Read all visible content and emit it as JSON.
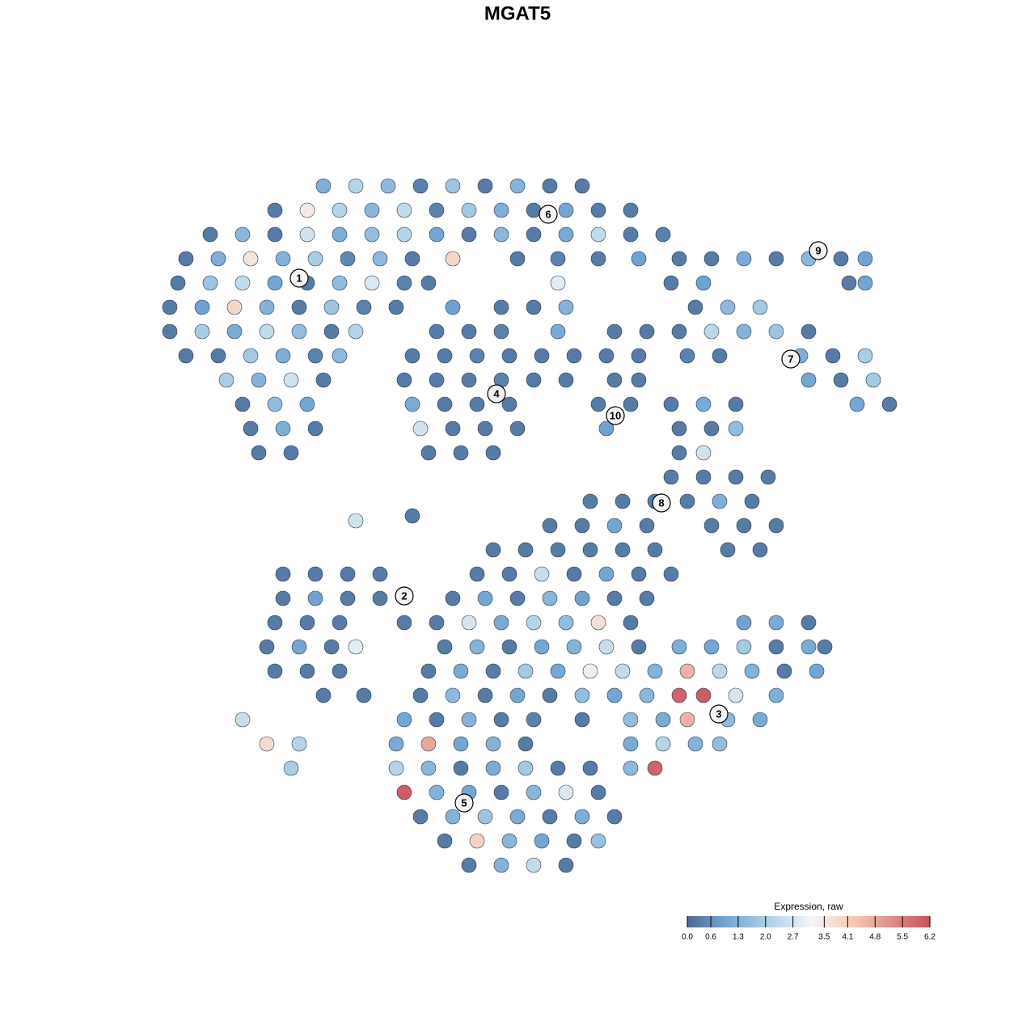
{
  "chart_data": {
    "type": "scatter",
    "title": "MGAT5",
    "xlim": [
      0,
      128
    ],
    "ylim": [
      128,
      0
    ],
    "series": [
      {
        "x": [
          40,
          44,
          48,
          52,
          56,
          60,
          64,
          68,
          72,
          34,
          38,
          42,
          46,
          50,
          54,
          58,
          62,
          66,
          70,
          74,
          78,
          26,
          30,
          34,
          38,
          42,
          46,
          50,
          54,
          58,
          62,
          66,
          70,
          74,
          78,
          82,
          23,
          27,
          31,
          35,
          39,
          43,
          47,
          51,
          56,
          64,
          69,
          74,
          79,
          84,
          88,
          92,
          96,
          100,
          104,
          107,
          22,
          26,
          30,
          34,
          38,
          42,
          46,
          50,
          53,
          69,
          83,
          87,
          105,
          107,
          21,
          25,
          29,
          33,
          37,
          41,
          45,
          49,
          56,
          62,
          66,
          70,
          86,
          90,
          94,
          21,
          25,
          29,
          33,
          37,
          41,
          44,
          54,
          58,
          62,
          69,
          76,
          80,
          84,
          88,
          92,
          96,
          100,
          23,
          27,
          31,
          35,
          39,
          42,
          51,
          55,
          59,
          63,
          67,
          71,
          75,
          79,
          85,
          89,
          99,
          103,
          107,
          28,
          32,
          36,
          40,
          50,
          54,
          58,
          62,
          66,
          70,
          76,
          79,
          100,
          104,
          108,
          30,
          34,
          38,
          51,
          55,
          59,
          63,
          74,
          78,
          83,
          87,
          91,
          106,
          110,
          31,
          35,
          39,
          52,
          56,
          60,
          64,
          75,
          84,
          88,
          91,
          32,
          36,
          53,
          57,
          61,
          84,
          87,
          83,
          87,
          91,
          95,
          73,
          77,
          81,
          85,
          89,
          93,
          68,
          72,
          76,
          80,
          88,
          92,
          96,
          61,
          65,
          69,
          73,
          77,
          81,
          90,
          94,
          35,
          39,
          43,
          47,
          59,
          63,
          67,
          71,
          75,
          79,
          83,
          35,
          39,
          43,
          47,
          56,
          60,
          64,
          68,
          72,
          76,
          80,
          34,
          38,
          42,
          50,
          54,
          58,
          62,
          66,
          70,
          74,
          78,
          92,
          96,
          100,
          33,
          37,
          41,
          44,
          55,
          59,
          63,
          67,
          71,
          75,
          79,
          84,
          88,
          92,
          96,
          100,
          102,
          34,
          38,
          42,
          53,
          57,
          61,
          65,
          69,
          73,
          77,
          81,
          85,
          89,
          93,
          97,
          101,
          40,
          45,
          52,
          56,
          60,
          64,
          68,
          72,
          76,
          80,
          84,
          87,
          91,
          96,
          30,
          50,
          54,
          58,
          62,
          66,
          72,
          78,
          82,
          85,
          90,
          94,
          33,
          37,
          49,
          53,
          57,
          61,
          65,
          78,
          82,
          86,
          89,
          36,
          49,
          53,
          57,
          61,
          65,
          69,
          73,
          78,
          81,
          50,
          54,
          58,
          62,
          66,
          70,
          74,
          52,
          56,
          60,
          64,
          68,
          72,
          76,
          55,
          59,
          63,
          67,
          71,
          74,
          58,
          62,
          66,
          70,
          44,
          51
        ],
        "y": [
          23,
          23,
          23,
          23,
          23,
          23,
          23,
          23,
          23,
          26,
          26,
          26,
          26,
          26,
          26,
          26,
          26,
          26,
          26,
          26,
          26,
          29,
          29,
          29,
          29,
          29,
          29,
          29,
          29,
          29,
          29,
          29,
          29,
          29,
          29,
          29,
          32,
          32,
          32,
          32,
          32,
          32,
          32,
          32,
          32,
          32,
          32,
          32,
          32,
          32,
          32,
          32,
          32,
          32,
          32,
          32,
          35,
          35,
          35,
          35,
          35,
          35,
          35,
          35,
          35,
          35,
          35,
          35,
          35,
          35,
          38,
          38,
          38,
          38,
          38,
          38,
          38,
          38,
          38,
          38,
          38,
          38,
          38,
          38,
          38,
          41,
          41,
          41,
          41,
          41,
          41,
          41,
          41,
          41,
          41,
          41,
          41,
          41,
          41,
          41,
          41,
          41,
          41,
          44,
          44,
          44,
          44,
          44,
          44,
          44,
          44,
          44,
          44,
          44,
          44,
          44,
          44,
          44,
          44,
          44,
          44,
          44,
          47,
          47,
          47,
          47,
          47,
          47,
          47,
          47,
          47,
          47,
          47,
          47,
          47,
          47,
          47,
          50,
          50,
          50,
          50,
          50,
          50,
          50,
          50,
          50,
          50,
          50,
          50,
          50,
          50,
          53,
          53,
          53,
          53,
          53,
          53,
          53,
          53,
          53,
          53,
          53,
          56,
          56,
          56,
          56,
          56,
          56,
          56,
          59,
          59,
          59,
          59,
          62,
          62,
          62,
          62,
          62,
          62,
          65,
          65,
          65,
          65,
          65,
          65,
          65,
          68,
          68,
          68,
          68,
          68,
          68,
          68,
          68,
          71,
          71,
          71,
          71,
          71,
          71,
          71,
          71,
          71,
          71,
          71,
          74,
          74,
          74,
          74,
          74,
          74,
          74,
          74,
          74,
          74,
          74,
          77,
          77,
          77,
          77,
          77,
          77,
          77,
          77,
          77,
          77,
          77,
          77,
          77,
          77,
          80,
          80,
          80,
          80,
          80,
          80,
          80,
          80,
          80,
          80,
          80,
          80,
          80,
          80,
          80,
          80,
          80,
          83,
          83,
          83,
          83,
          83,
          83,
          83,
          83,
          83,
          83,
          83,
          83,
          83,
          83,
          83,
          83,
          86,
          86,
          86,
          86,
          86,
          86,
          86,
          86,
          86,
          86,
          86,
          86,
          86,
          86,
          89,
          89,
          89,
          89,
          89,
          89,
          89,
          89,
          89,
          89,
          89,
          89,
          92,
          92,
          92,
          92,
          92,
          92,
          92,
          92,
          92,
          92,
          92,
          95,
          95,
          95,
          95,
          95,
          95,
          95,
          95,
          95,
          95,
          98,
          98,
          98,
          98,
          98,
          98,
          98,
          101,
          101,
          101,
          101,
          101,
          101,
          101,
          104,
          104,
          104,
          104,
          104,
          104,
          107,
          107,
          107,
          107,
          64.4,
          63.8
        ],
        "values": [
          1.2,
          2.2,
          1.5,
          0.4,
          1.8,
          0.3,
          1.3,
          0.3,
          0.3,
          0.3,
          3.5,
          2.2,
          1.4,
          2.4,
          0.4,
          1.9,
          1.2,
          0.3,
          1.0,
          0.3,
          0.3,
          0.3,
          1.4,
          0.3,
          2.6,
          1.2,
          1.6,
          2.2,
          1.0,
          0.3,
          1.4,
          0.3,
          1.1,
          2.4,
          0.3,
          0.4,
          0.3,
          1.2,
          3.6,
          1.3,
          2.0,
          0.5,
          1.5,
          0.3,
          3.9,
          0.3,
          0.4,
          0.3,
          0.9,
          0.3,
          0.3,
          1.1,
          0.3,
          1.4,
          0.3,
          0.9,
          0.3,
          1.8,
          2.4,
          1.0,
          0.3,
          1.6,
          2.8,
          0.4,
          0.3,
          2.9,
          0.3,
          0.9,
          0.3,
          1.0,
          0.3,
          0.9,
          3.9,
          1.3,
          0.3,
          1.8,
          0.4,
          0.3,
          0.9,
          0.3,
          0.3,
          1.3,
          0.3,
          1.5,
          1.9,
          0.3,
          2.0,
          1.1,
          2.4,
          1.6,
          0.3,
          2.2,
          0.3,
          0.3,
          0.4,
          1.1,
          0.3,
          0.3,
          0.3,
          2.3,
          1.3,
          1.8,
          0.3,
          0.3,
          0.3,
          1.9,
          1.2,
          0.4,
          1.5,
          0.3,
          0.3,
          0.4,
          0.3,
          0.3,
          0.3,
          0.3,
          0.3,
          0.4,
          0.3,
          1.2,
          0.3,
          2.0,
          2.0,
          1.3,
          2.6,
          0.3,
          0.3,
          0.3,
          0.3,
          0.4,
          0.3,
          0.3,
          0.3,
          0.3,
          1.0,
          0.3,
          1.9,
          0.3,
          1.6,
          1.0,
          1.1,
          0.3,
          0.3,
          0.3,
          0.3,
          0.3,
          0.3,
          1.1,
          0.3,
          1.0,
          0.3,
          0.3,
          1.2,
          0.3,
          2.6,
          0.3,
          0.3,
          0.3,
          0.9,
          0.3,
          0.3,
          1.6,
          0.3,
          0.3,
          0.3,
          0.3,
          0.3,
          0.3,
          2.6,
          0.3,
          0.3,
          0.3,
          0.3,
          0.3,
          0.3,
          0.3,
          0.3,
          1.2,
          0.3,
          0.3,
          0.3,
          1.0,
          0.3,
          0.3,
          0.3,
          0.3,
          0.3,
          0.3,
          0.3,
          0.3,
          0.3,
          0.3,
          0.3,
          0.3,
          0.3,
          0.3,
          0.3,
          0.3,
          0.3,
          0.3,
          2.5,
          0.3,
          1.0,
          0.3,
          0.3,
          0.3,
          0.9,
          0.3,
          0.3,
          0.3,
          1.0,
          0.3,
          1.4,
          0.9,
          0.3,
          0.3,
          0.3,
          0.3,
          0.3,
          0.3,
          0.3,
          2.7,
          1.1,
          2.2,
          1.6,
          3.7,
          0.3,
          0.9,
          1.1,
          0.3,
          0.3,
          1.0,
          0.3,
          2.9,
          0.3,
          1.3,
          0.3,
          1.0,
          1.3,
          2.5,
          0.3,
          1.2,
          1.0,
          1.9,
          0.3,
          1.1,
          0.3,
          0.3,
          0.3,
          0.3,
          0.3,
          1.1,
          0.3,
          1.9,
          1.0,
          3.4,
          2.4,
          1.3,
          4.6,
          2.3,
          1.3,
          0.3,
          1.0,
          0.3,
          0.3,
          0.3,
          1.5,
          0.3,
          1.0,
          0.3,
          1.6,
          1.0,
          1.4,
          5.9,
          6.0,
          2.7,
          1.2,
          2.5,
          1.0,
          0.3,
          1.3,
          0.3,
          0.4,
          0.3,
          1.6,
          1.1,
          4.6,
          1.5,
          1.1,
          3.8,
          2.2,
          1.1,
          4.8,
          1.0,
          1.3,
          0.3,
          1.1,
          2.2,
          1.3,
          1.6,
          2.0,
          2.2,
          1.4,
          0.3,
          1.1,
          1.9,
          0.3,
          0.3,
          1.5,
          5.9,
          6.0,
          1.3,
          1.0,
          0.3,
          1.4,
          2.8,
          0.3,
          0.3,
          1.3,
          1.8,
          1.1,
          0.3,
          1.2,
          0.3,
          0.3,
          4.0,
          1.4,
          1.0,
          0.3,
          1.7,
          0.3,
          1.3,
          2.4,
          0.3,
          2.6,
          0.3
        ]
      }
    ],
    "clusters": [
      {
        "label": "1",
        "x": 37,
        "y": 34.4
      },
      {
        "label": "2",
        "x": 50,
        "y": 73.7
      },
      {
        "label": "3",
        "x": 88.9,
        "y": 88.3
      },
      {
        "label": "4",
        "x": 61.4,
        "y": 48.7
      },
      {
        "label": "5",
        "x": 57.4,
        "y": 99.3
      },
      {
        "label": "6",
        "x": 67.8,
        "y": 26.5
      },
      {
        "label": "7",
        "x": 97.8,
        "y": 44.4
      },
      {
        "label": "8",
        "x": 81.8,
        "y": 62.2
      },
      {
        "label": "9",
        "x": 101.2,
        "y": 31
      },
      {
        "label": "10",
        "x": 76.1,
        "y": 51.4
      }
    ],
    "colorbar": {
      "title": "Expression, raw",
      "lim": [
        0,
        6.2
      ],
      "ticks": [
        {
          "value": 0,
          "label": "0.0"
        },
        0.6,
        1.3,
        {
          "value": 2,
          "label": "2.0"
        },
        2.7,
        3.5,
        4.1,
        4.8,
        5.5,
        6.2
      ],
      "colorscale": [
        {
          "value": 0,
          "color": "#4a6890"
        },
        {
          "value": 0.9,
          "color": "#6fa2d3"
        },
        {
          "value": 2.0,
          "color": "#a9cde3"
        },
        {
          "value": 3.2,
          "color": "#f4f6f8"
        },
        {
          "value": 4.3,
          "color": "#f5c6b0"
        },
        {
          "value": 6.2,
          "color": "#c8505f"
        }
      ]
    }
  }
}
